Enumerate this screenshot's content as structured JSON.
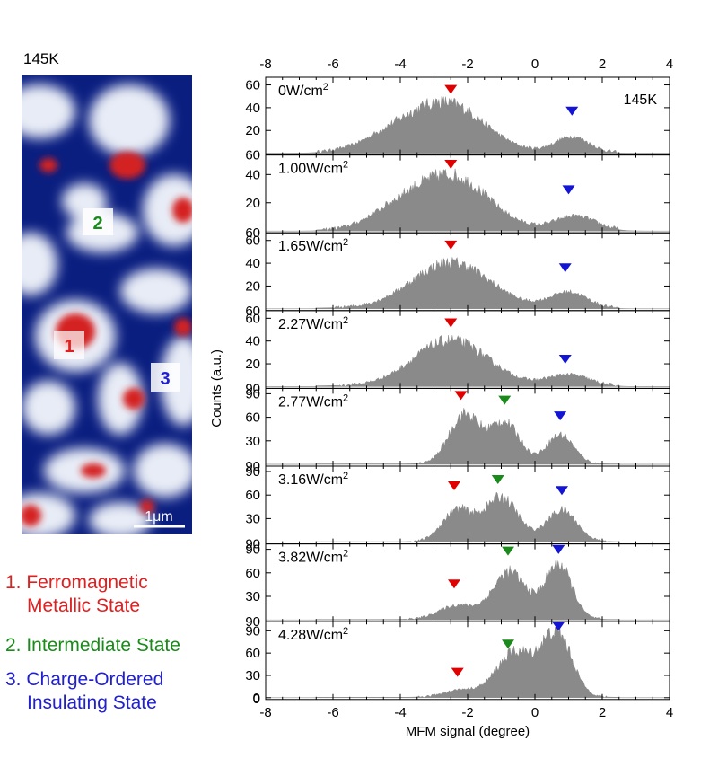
{
  "map": {
    "temperature_label": "145K",
    "scale_bar_label": "1μm",
    "region_markers": [
      {
        "label": "1",
        "color": "#e02020"
      },
      {
        "label": "2",
        "color": "#1a8a1a"
      },
      {
        "label": "3",
        "color": "#2020d0"
      }
    ]
  },
  "legend": [
    {
      "number": "1.",
      "lines": [
        "Ferromagnetic",
        "Metallic State"
      ],
      "color": "#e02020"
    },
    {
      "number": "2.",
      "lines": [
        "Intermediate State"
      ],
      "color": "#1a8a1a"
    },
    {
      "number": "3.",
      "lines": [
        "Charge-Ordered",
        "Insulating State"
      ],
      "color": "#2020d0"
    }
  ],
  "colors": {
    "histogram_fill": "#8a8a8a",
    "marker_metallic": "#e00000",
    "marker_intermediate": "#1a8a1a",
    "marker_insulating": "#1414d4",
    "map_background": "#0a1e80",
    "map_metallic": "#d42020"
  },
  "chart_data": {
    "type": "area",
    "xlabel": "MFM signal (degree)",
    "ylabel": "Counts (a.u.)",
    "xlim": [
      -8,
      4
    ],
    "x_ticks": [
      -8,
      -6,
      -4,
      -2,
      0,
      2,
      4
    ],
    "top_axis_ticks": [
      -8,
      -6,
      -4,
      -2,
      0,
      2,
      4
    ],
    "annotation": "145K",
    "panels": [
      {
        "label": "0W/cm",
        "sup": "2",
        "ylim": [
          0,
          62
        ],
        "yticks": [
          20,
          40,
          60
        ],
        "bottom_tick": "60",
        "peaks": [
          {
            "center": -2.6,
            "width": 1.1,
            "height": 42
          },
          {
            "center": -4.3,
            "width": 0.9,
            "height": 12
          },
          {
            "center": 1.1,
            "width": 0.5,
            "height": 14
          }
        ],
        "markers": [
          {
            "state": "metallic",
            "x": -2.5,
            "y": 52
          },
          {
            "state": "insulating",
            "x": 1.1,
            "y": 33
          }
        ]
      },
      {
        "label": "1.00W/cm",
        "sup": "2",
        "ylim": [
          0,
          50
        ],
        "yticks": [
          20,
          40
        ],
        "bottom_tick": "60",
        "peaks": [
          {
            "center": -2.5,
            "width": 1.1,
            "height": 38
          },
          {
            "center": -4.2,
            "width": 0.8,
            "height": 10
          },
          {
            "center": 1.2,
            "width": 0.6,
            "height": 10
          }
        ],
        "markers": [
          {
            "state": "metallic",
            "x": -2.5,
            "y": 44
          },
          {
            "state": "insulating",
            "x": 1.0,
            "y": 26
          }
        ]
      },
      {
        "label": "1.65W/cm",
        "sup": "2",
        "ylim": [
          0,
          62
        ],
        "yticks": [
          20,
          40,
          60
        ],
        "bottom_tick": "60",
        "peaks": [
          {
            "center": -2.5,
            "width": 1.15,
            "height": 40
          },
          {
            "center": 1.0,
            "width": 0.55,
            "height": 14
          }
        ],
        "markers": [
          {
            "state": "metallic",
            "x": -2.5,
            "y": 52
          },
          {
            "state": "insulating",
            "x": 0.9,
            "y": 32
          }
        ]
      },
      {
        "label": "2.27W/cm",
        "sup": "2",
        "ylim": [
          0,
          62
        ],
        "yticks": [
          20,
          40,
          60
        ],
        "bottom_tick": "90",
        "peaks": [
          {
            "center": -2.5,
            "width": 1.1,
            "height": 40
          },
          {
            "center": 1.0,
            "width": 0.6,
            "height": 10
          }
        ],
        "markers": [
          {
            "state": "metallic",
            "x": -2.5,
            "y": 52
          },
          {
            "state": "insulating",
            "x": 0.9,
            "y": 20
          }
        ]
      },
      {
        "label": "2.77W/cm",
        "sup": "2",
        "ylim": [
          0,
          90
        ],
        "yticks": [
          30,
          60,
          90
        ],
        "bottom_tick": "90",
        "peaks": [
          {
            "center": -2.1,
            "width": 0.45,
            "height": 62
          },
          {
            "center": -0.9,
            "width": 0.45,
            "height": 52
          },
          {
            "center": 0.75,
            "width": 0.4,
            "height": 37
          }
        ],
        "markers": [
          {
            "state": "metallic",
            "x": -2.2,
            "y": 82
          },
          {
            "state": "intermediate",
            "x": -0.9,
            "y": 76
          },
          {
            "state": "insulating",
            "x": 0.75,
            "y": 56
          }
        ]
      },
      {
        "label": "3.16W/cm",
        "sup": "2",
        "ylim": [
          0,
          90
        ],
        "yticks": [
          30,
          60,
          90
        ],
        "bottom_tick": "90",
        "peaks": [
          {
            "center": -2.3,
            "width": 0.45,
            "height": 40
          },
          {
            "center": -1.0,
            "width": 0.5,
            "height": 56
          },
          {
            "center": 0.8,
            "width": 0.45,
            "height": 40
          }
        ],
        "markers": [
          {
            "state": "metallic",
            "x": -2.4,
            "y": 66
          },
          {
            "state": "intermediate",
            "x": -1.1,
            "y": 74
          },
          {
            "state": "insulating",
            "x": 0.8,
            "y": 60
          }
        ]
      },
      {
        "label": "3.82W/cm",
        "sup": "2",
        "ylim": [
          0,
          90
        ],
        "yticks": [
          30,
          60,
          90
        ],
        "bottom_tick": "90",
        "peaks": [
          {
            "center": -2.3,
            "width": 0.55,
            "height": 18
          },
          {
            "center": -0.75,
            "width": 0.5,
            "height": 60
          },
          {
            "center": 0.7,
            "width": 0.4,
            "height": 70
          }
        ],
        "markers": [
          {
            "state": "metallic",
            "x": -2.4,
            "y": 40
          },
          {
            "state": "intermediate",
            "x": -0.8,
            "y": 82
          },
          {
            "state": "insulating",
            "x": 0.7,
            "y": 84
          }
        ]
      },
      {
        "label": "4.28W/cm",
        "sup": "2",
        "ylim": [
          0,
          95
        ],
        "yticks": [
          0,
          30,
          60,
          90
        ],
        "bottom_tick": "0",
        "peaks": [
          {
            "center": -2.2,
            "width": 0.5,
            "height": 10
          },
          {
            "center": -0.6,
            "width": 0.55,
            "height": 60
          },
          {
            "center": 0.65,
            "width": 0.45,
            "height": 85
          }
        ],
        "markers": [
          {
            "state": "metallic",
            "x": -2.3,
            "y": 28
          },
          {
            "state": "intermediate",
            "x": -0.8,
            "y": 66
          },
          {
            "state": "insulating",
            "x": 0.7,
            "y": 90
          }
        ]
      }
    ]
  }
}
